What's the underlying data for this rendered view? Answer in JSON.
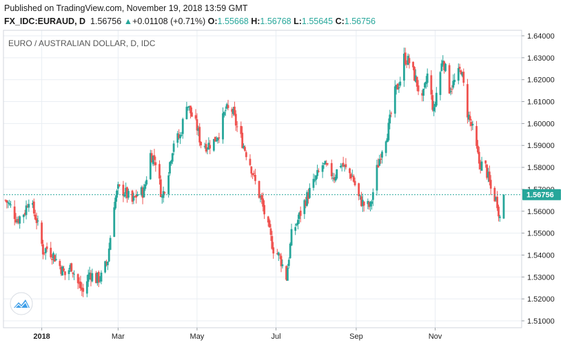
{
  "header": {
    "published": "Published on TradingView.com, November 19, 2018 13:59 GMT",
    "symbol": "FX_IDC:EURAUD, D",
    "last": "1.56756",
    "change_arrow": "▲",
    "change": "+0.01108 (+0.71%)",
    "o_label": "O:",
    "o_value": "1.55668",
    "h_label": "H:",
    "h_value": "1.56768",
    "l_label": "L:",
    "l_value": "1.55645",
    "c_label": "C:",
    "c_value": "1.56756"
  },
  "colors": {
    "up": "#26a69a",
    "down": "#ef5350",
    "price_line": "#26a69a",
    "grid": "#e9eef3"
  },
  "chart_data": {
    "type": "candlestick",
    "title": "EURO / AUSTRALIAN DOLLAR, D, IDC",
    "y_ticks": [
      "1.64000",
      "1.63000",
      "1.62000",
      "1.61000",
      "1.60000",
      "1.59000",
      "1.58000",
      "1.57000",
      "1.56000",
      "1.55000",
      "1.54000",
      "1.53000",
      "1.52000",
      "1.51000"
    ],
    "ylim": [
      1.5085,
      1.6425
    ],
    "x_ticks": [
      "2018",
      "Mar",
      "May",
      "Jul",
      "Sep",
      "Nov"
    ],
    "last_price": "1.56756",
    "grid": true,
    "close_path": [
      [
        "2017-12-04",
        1.565
      ],
      [
        "2017-12-08",
        1.562
      ],
      [
        "2017-12-13",
        1.556
      ],
      [
        "2017-12-19",
        1.56
      ],
      [
        "2017-12-22",
        1.566
      ],
      [
        "2017-12-28",
        1.556
      ],
      [
        "2018-01-02",
        1.542
      ],
      [
        "2018-01-05",
        1.543
      ],
      [
        "2018-01-10",
        1.54
      ],
      [
        "2018-01-15",
        1.535
      ],
      [
        "2018-01-19",
        1.531
      ],
      [
        "2018-01-24",
        1.535
      ],
      [
        "2018-01-29",
        1.527
      ],
      [
        "2018-02-02",
        1.523
      ],
      [
        "2018-02-07",
        1.532
      ],
      [
        "2018-02-12",
        1.529
      ],
      [
        "2018-02-16",
        1.53
      ],
      [
        "2018-02-21",
        1.538
      ],
      [
        "2018-02-26",
        1.564
      ],
      [
        "2018-03-01",
        1.57
      ],
      [
        "2018-03-06",
        1.569
      ],
      [
        "2018-03-12",
        1.564
      ],
      [
        "2018-03-16",
        1.568
      ],
      [
        "2018-03-21",
        1.569
      ],
      [
        "2018-03-26",
        1.586
      ],
      [
        "2018-03-30",
        1.583
      ],
      [
        "2018-04-04",
        1.566
      ],
      [
        "2018-04-09",
        1.579
      ],
      [
        "2018-04-13",
        1.592
      ],
      [
        "2018-04-18",
        1.594
      ],
      [
        "2018-04-23",
        1.61
      ],
      [
        "2018-04-26",
        1.605
      ],
      [
        "2018-05-01",
        1.598
      ],
      [
        "2018-05-04",
        1.591
      ],
      [
        "2018-05-09",
        1.59
      ],
      [
        "2018-05-14",
        1.592
      ],
      [
        "2018-05-18",
        1.596
      ],
      [
        "2018-05-23",
        1.606
      ],
      [
        "2018-05-28",
        1.606
      ],
      [
        "2018-06-01",
        1.598
      ],
      [
        "2018-06-06",
        1.59
      ],
      [
        "2018-06-11",
        1.582
      ],
      [
        "2018-06-15",
        1.573
      ],
      [
        "2018-06-20",
        1.564
      ],
      [
        "2018-06-25",
        1.552
      ],
      [
        "2018-06-29",
        1.543
      ],
      [
        "2018-07-04",
        1.539
      ],
      [
        "2018-07-09",
        1.53
      ],
      [
        "2018-07-13",
        1.549
      ],
      [
        "2018-07-18",
        1.556
      ],
      [
        "2018-07-23",
        1.564
      ],
      [
        "2018-07-27",
        1.569
      ],
      [
        "2018-08-01",
        1.575
      ],
      [
        "2018-08-06",
        1.581
      ],
      [
        "2018-08-10",
        1.579
      ],
      [
        "2018-08-15",
        1.576
      ],
      [
        "2018-08-20",
        1.582
      ],
      [
        "2018-08-24",
        1.579
      ],
      [
        "2018-08-29",
        1.576
      ],
      [
        "2018-09-03",
        1.566
      ],
      [
        "2018-09-07",
        1.563
      ],
      [
        "2018-09-12",
        1.562
      ],
      [
        "2018-09-17",
        1.579
      ],
      [
        "2018-09-21",
        1.589
      ],
      [
        "2018-09-26",
        1.598
      ],
      [
        "2018-10-01",
        1.614
      ],
      [
        "2018-10-05",
        1.62
      ],
      [
        "2018-10-08",
        1.63
      ],
      [
        "2018-10-12",
        1.628
      ],
      [
        "2018-10-17",
        1.62
      ],
      [
        "2018-10-22",
        1.61
      ],
      [
        "2018-10-26",
        1.622
      ],
      [
        "2018-10-31",
        1.605
      ],
      [
        "2018-11-02",
        1.614
      ],
      [
        "2018-11-07",
        1.63
      ],
      [
        "2018-11-12",
        1.616
      ],
      [
        "2018-11-16",
        1.619
      ],
      [
        "2018-11-21",
        1.625
      ],
      [
        "2018-11-26",
        1.605
      ],
      [
        "2018-11-30",
        1.597
      ],
      [
        "2018-12-05",
        1.582
      ],
      [
        "2018-12-10",
        1.58
      ],
      [
        "2018-12-14",
        1.57
      ],
      [
        "2018-12-19",
        1.564
      ],
      [
        "2018-12-21",
        1.557
      ],
      [
        "2018-12-24",
        1.5676
      ]
    ]
  },
  "logo": {
    "name": "tradingview-logo-icon"
  }
}
